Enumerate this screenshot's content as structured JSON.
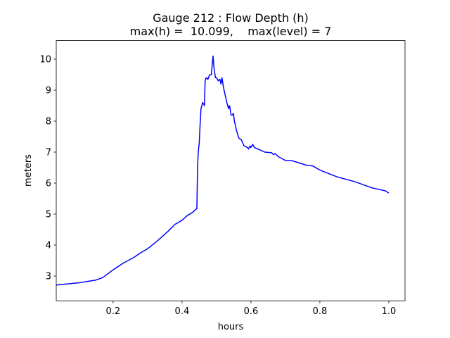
{
  "chart_data": {
    "type": "line",
    "title": "Gauge 212 : Flow Depth (h)",
    "subtitle": "max(h) =  10.099,    max(level) = 7",
    "xlabel": "hours",
    "ylabel": "meters",
    "xlim": [
      0.035,
      1.047
    ],
    "ylim": [
      2.2,
      10.6
    ],
    "xticks": [
      0.2,
      0.4,
      0.6,
      0.8,
      {
        "value": 1,
        "label": "1.0"
      }
    ],
    "yticks": [
      3,
      4,
      5,
      6,
      7,
      8,
      9,
      10
    ],
    "grid": false,
    "series": [
      {
        "color": "#0000ff",
        "x": [
          0.035,
          0.1,
          0.15,
          0.17,
          0.2,
          0.23,
          0.26,
          0.28,
          0.3,
          0.33,
          0.36,
          0.38,
          0.4,
          0.415,
          0.43,
          0.44,
          0.443,
          0.445,
          0.447,
          0.45,
          0.452,
          0.455,
          0.46,
          0.465,
          0.467,
          0.47,
          0.475,
          0.48,
          0.485,
          0.49,
          0.493,
          0.497,
          0.5,
          0.505,
          0.51,
          0.513,
          0.516,
          0.52,
          0.53,
          0.535,
          0.538,
          0.542,
          0.546,
          0.549,
          0.552,
          0.558,
          0.565,
          0.572,
          0.58,
          0.59,
          0.593,
          0.597,
          0.6,
          0.605,
          0.61,
          0.62,
          0.63,
          0.64,
          0.66,
          0.665,
          0.67,
          0.68,
          0.7,
          0.72,
          0.74,
          0.76,
          0.78,
          0.8,
          0.85,
          0.9,
          0.95,
          0.97,
          0.99,
          1.0
        ],
        "values": [
          2.71,
          2.78,
          2.87,
          2.95,
          3.2,
          3.42,
          3.6,
          3.75,
          3.88,
          4.15,
          4.45,
          4.67,
          4.8,
          4.95,
          5.05,
          5.15,
          5.17,
          6.5,
          7.0,
          7.3,
          7.8,
          8.4,
          8.6,
          8.5,
          9.3,
          9.4,
          9.35,
          9.5,
          9.5,
          10.099,
          9.7,
          9.4,
          9.4,
          9.3,
          9.35,
          9.2,
          9.4,
          9.1,
          8.6,
          8.4,
          8.5,
          8.2,
          8.2,
          8.25,
          8.0,
          7.7,
          7.45,
          7.4,
          7.2,
          7.15,
          7.1,
          7.2,
          7.15,
          7.25,
          7.15,
          7.1,
          7.05,
          7.0,
          6.98,
          6.92,
          6.95,
          6.85,
          6.73,
          6.72,
          6.65,
          6.58,
          6.55,
          6.42,
          6.2,
          6.05,
          5.85,
          5.8,
          5.75,
          5.68
        ]
      }
    ]
  }
}
